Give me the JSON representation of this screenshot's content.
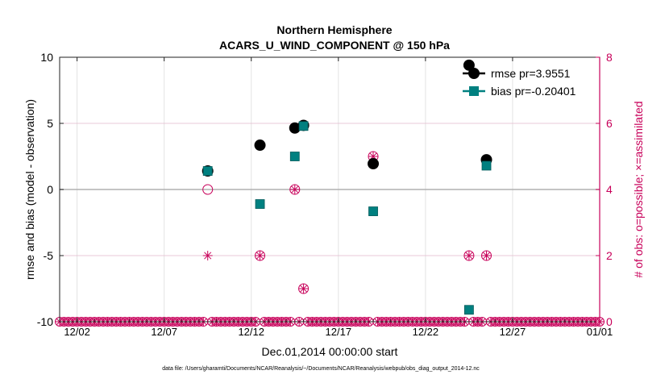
{
  "chart_data": {
    "type": "scatter",
    "title": "Northern Hemisphere",
    "subtitle": "ACARS_U_WIND_COMPONENT @ 150 hPa",
    "xlabel": "Dec.01,2014 00:00:00 start",
    "ylabel": "rmse and bias (model - observation)",
    "y2label": "# of obs: o=possible; ×=assimilated",
    "footnote": "data file: /Users/gharamti/Documents/NCAR/Reanalysis/~/Documents/NCAR/Reanalysis/webpub/obs_diag_output_2014-12.nc",
    "xlim": [
      0,
      31
    ],
    "ylim": [
      -10,
      10
    ],
    "y2lim": [
      0,
      8
    ],
    "x_ticks": [
      1,
      6,
      11,
      16,
      21,
      26,
      31
    ],
    "x_tick_labels": [
      "12/02",
      "12/07",
      "12/12",
      "12/17",
      "12/22",
      "12/27",
      "01/01"
    ],
    "y_ticks": [
      -10,
      -5,
      0,
      5,
      10
    ],
    "y_tick_labels": [
      "-10",
      "-5",
      "0",
      "5",
      "10"
    ],
    "y2_ticks": [
      0,
      2,
      4,
      6,
      8
    ],
    "y2_tick_labels": [
      "0",
      "2",
      "4",
      "6",
      "8"
    ],
    "series": [
      {
        "name": "rmse",
        "legend": "rmse pr=3.9551",
        "color": "#000000",
        "x": [
          8.5,
          11.5,
          13.5,
          14.0,
          18.0,
          23.5,
          24.5
        ],
        "y": [
          1.4,
          3.35,
          4.65,
          4.85,
          1.95,
          9.4,
          2.25
        ]
      },
      {
        "name": "bias",
        "legend": "bias pr=-0.20401",
        "color": "#008080",
        "x": [
          8.5,
          11.5,
          13.5,
          14.0,
          18.0,
          23.5,
          24.5
        ],
        "y": [
          1.4,
          -1.1,
          2.5,
          4.8,
          -1.65,
          -9.1,
          1.8
        ]
      }
    ],
    "obs_possible": {
      "color": "#c8005a",
      "x": [
        8.5,
        11.5,
        13.5,
        14.0,
        18.0,
        23.5,
        24.5
      ],
      "y": [
        4,
        2,
        4,
        1,
        5,
        2,
        2
      ]
    },
    "obs_assimilated": {
      "color": "#c8005a",
      "x": [
        8.5,
        11.5,
        13.5,
        14.0,
        18.0,
        23.5,
        24.5
      ],
      "y": [
        2,
        2,
        4,
        1,
        5,
        2,
        2
      ]
    },
    "legend_position": "top-right",
    "grid": true
  }
}
